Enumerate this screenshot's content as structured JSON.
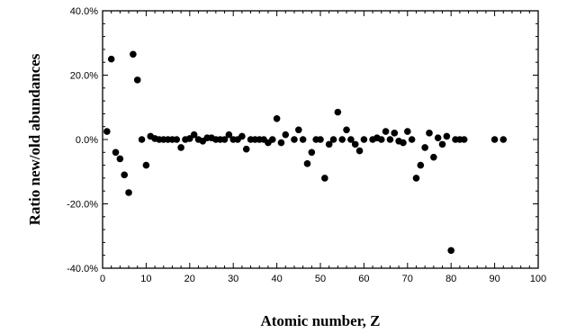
{
  "chart_data": {
    "type": "scatter",
    "xlabel": "Atomic number,  Z",
    "ylabel": "Ratio  new/old  abundances",
    "xlim": [
      0,
      100
    ],
    "ylim": [
      -40,
      40
    ],
    "x_ticks": [
      0,
      10,
      20,
      30,
      40,
      50,
      60,
      70,
      80,
      90,
      100
    ],
    "x_tick_labels": [
      "0",
      "10",
      "20",
      "30",
      "40",
      "50",
      "60",
      "70",
      "80",
      "90",
      "100"
    ],
    "y_ticks": [
      40,
      20,
      0,
      -20,
      -40
    ],
    "y_tick_labels": [
      "40.0%",
      "20.0%",
      "0.0%",
      "-20.0%",
      "-40.0%"
    ],
    "grid": false,
    "marker_color": "#000000",
    "points": [
      {
        "x": 1,
        "y": 2.5
      },
      {
        "x": 2,
        "y": 25
      },
      {
        "x": 3,
        "y": -4
      },
      {
        "x": 4,
        "y": -6
      },
      {
        "x": 5,
        "y": -11
      },
      {
        "x": 6,
        "y": -16.5
      },
      {
        "x": 7,
        "y": 26.5
      },
      {
        "x": 8,
        "y": 18.5
      },
      {
        "x": 9,
        "y": 0
      },
      {
        "x": 10,
        "y": -8
      },
      {
        "x": 11,
        "y": 1
      },
      {
        "x": 12,
        "y": 0.3
      },
      {
        "x": 13,
        "y": 0
      },
      {
        "x": 14,
        "y": 0
      },
      {
        "x": 15,
        "y": 0
      },
      {
        "x": 16,
        "y": 0
      },
      {
        "x": 17,
        "y": 0
      },
      {
        "x": 18,
        "y": -2.5
      },
      {
        "x": 19,
        "y": 0
      },
      {
        "x": 20,
        "y": 0.3
      },
      {
        "x": 21,
        "y": 1.5
      },
      {
        "x": 22,
        "y": 0
      },
      {
        "x": 23,
        "y": -0.5
      },
      {
        "x": 24,
        "y": 0.5
      },
      {
        "x": 25,
        "y": 0.5
      },
      {
        "x": 26,
        "y": 0
      },
      {
        "x": 27,
        "y": 0
      },
      {
        "x": 28,
        "y": 0
      },
      {
        "x": 29,
        "y": 1.5
      },
      {
        "x": 30,
        "y": 0
      },
      {
        "x": 31,
        "y": 0
      },
      {
        "x": 32,
        "y": 1
      },
      {
        "x": 33,
        "y": -3
      },
      {
        "x": 34,
        "y": 0
      },
      {
        "x": 35,
        "y": 0
      },
      {
        "x": 36,
        "y": 0
      },
      {
        "x": 37,
        "y": 0
      },
      {
        "x": 38,
        "y": -1
      },
      {
        "x": 39,
        "y": 0
      },
      {
        "x": 40,
        "y": 6.5
      },
      {
        "x": 41,
        "y": -1
      },
      {
        "x": 42,
        "y": 1.5
      },
      {
        "x": 44,
        "y": 0
      },
      {
        "x": 45,
        "y": 3
      },
      {
        "x": 46,
        "y": 0
      },
      {
        "x": 47,
        "y": -7.5
      },
      {
        "x": 48,
        "y": -4
      },
      {
        "x": 49,
        "y": 0
      },
      {
        "x": 50,
        "y": 0
      },
      {
        "x": 51,
        "y": -12
      },
      {
        "x": 52,
        "y": -1.5
      },
      {
        "x": 53,
        "y": 0
      },
      {
        "x": 54,
        "y": 8.5
      },
      {
        "x": 55,
        "y": 0
      },
      {
        "x": 56,
        "y": 3
      },
      {
        "x": 57,
        "y": 0
      },
      {
        "x": 58,
        "y": -1.5
      },
      {
        "x": 59,
        "y": -3.5
      },
      {
        "x": 60,
        "y": 0
      },
      {
        "x": 62,
        "y": 0
      },
      {
        "x": 63,
        "y": 0.5
      },
      {
        "x": 64,
        "y": 0
      },
      {
        "x": 65,
        "y": 2.5
      },
      {
        "x": 66,
        "y": 0
      },
      {
        "x": 67,
        "y": 2
      },
      {
        "x": 68,
        "y": -0.5
      },
      {
        "x": 69,
        "y": -1
      },
      {
        "x": 70,
        "y": 2.5
      },
      {
        "x": 71,
        "y": 0
      },
      {
        "x": 72,
        "y": -12
      },
      {
        "x": 73,
        "y": -8
      },
      {
        "x": 74,
        "y": -2.5
      },
      {
        "x": 75,
        "y": 2
      },
      {
        "x": 76,
        "y": -5.5
      },
      {
        "x": 77,
        "y": 0.5
      },
      {
        "x": 78,
        "y": -1.5
      },
      {
        "x": 79,
        "y": 1
      },
      {
        "x": 80,
        "y": -34.5
      },
      {
        "x": 81,
        "y": 0
      },
      {
        "x": 82,
        "y": 0
      },
      {
        "x": 83,
        "y": 0
      },
      {
        "x": 90,
        "y": 0
      },
      {
        "x": 92,
        "y": 0
      }
    ]
  }
}
